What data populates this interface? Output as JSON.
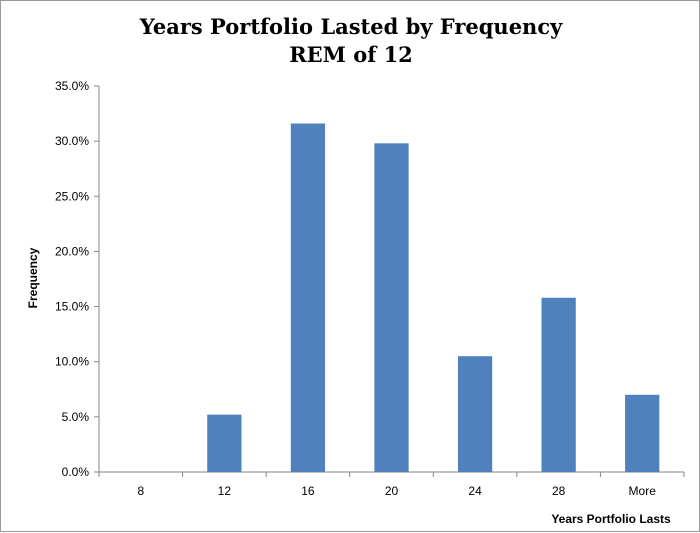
{
  "chart_data": {
    "type": "bar",
    "title": "Years Portfolio Lasted by Frequency",
    "subtitle": "REM of 12",
    "xlabel": "Years Portfolio Lasts",
    "ylabel": "Frequency",
    "categories": [
      "8",
      "12",
      "16",
      "20",
      "24",
      "28",
      "More"
    ],
    "values": [
      0.0,
      5.2,
      31.6,
      29.8,
      10.5,
      15.8,
      7.0
    ],
    "ylim": [
      0,
      35
    ],
    "yticks": [
      "0.0%",
      "5.0%",
      "10.0%",
      "15.0%",
      "20.0%",
      "25.0%",
      "30.0%",
      "35.0%"
    ],
    "bar_color": "#4f81bd",
    "grid": false,
    "legend": "none"
  }
}
